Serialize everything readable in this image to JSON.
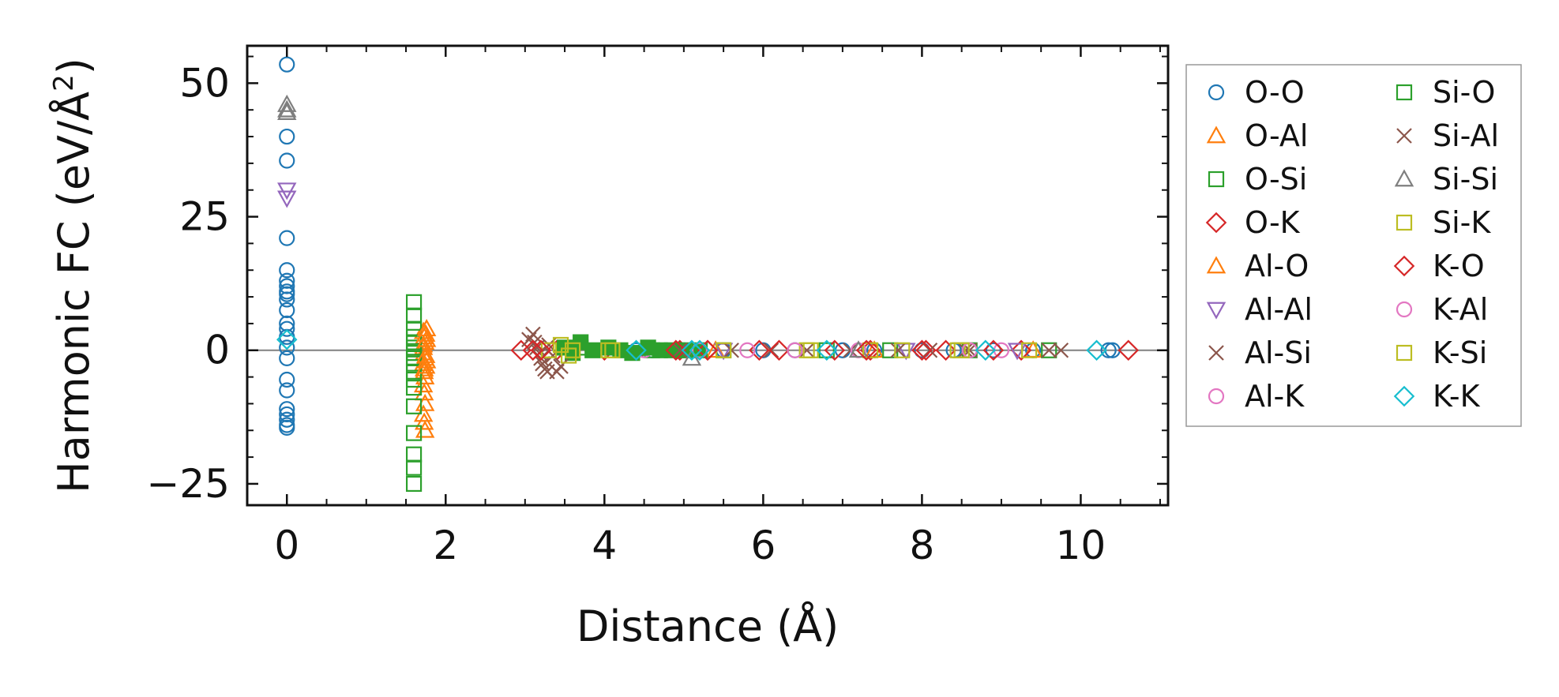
{
  "chart_data": {
    "type": "scatter",
    "title": "",
    "xlabel": "Distance (Å)",
    "ylabel_prefix": "Harmonic FC (eV/Å",
    "ylabel_sup": "2",
    "ylabel_suffix": ")",
    "xlim": [
      -0.5,
      11.1
    ],
    "ylim": [
      -29,
      57
    ],
    "xticks": [
      0,
      2,
      4,
      6,
      8,
      10
    ],
    "xtick_labels": [
      "0",
      "2",
      "4",
      "6",
      "8",
      "10"
    ],
    "yticks": [
      -25,
      0,
      25,
      50
    ],
    "ytick_labels": [
      "−25",
      "0",
      "25",
      "50"
    ],
    "zero_line": 0,
    "legend_position": "right",
    "series": [
      {
        "name": "O-O",
        "marker": "circle",
        "color": "#1f77b4",
        "filled": false,
        "x": [
          0,
          0,
          0,
          0,
          0,
          0,
          0,
          0,
          0,
          0,
          0,
          0,
          0,
          0,
          0,
          0,
          0,
          0,
          0,
          0,
          0,
          0,
          0,
          4.4,
          4.6,
          5.0,
          5.5,
          6.0,
          6.4,
          7.0,
          7.4,
          8.0,
          8.4,
          8.9,
          9.4,
          10.4,
          10.35
        ],
        "y": [
          53.5,
          40,
          35.5,
          21,
          15,
          13,
          12,
          11,
          10.5,
          9.5,
          7.5,
          5,
          4,
          2.5,
          -1.5,
          -5.5,
          -7.5,
          -11,
          -12,
          -13,
          -14,
          -14.5,
          0.5,
          0,
          0,
          0,
          0,
          0,
          0,
          0,
          0,
          0,
          0,
          0,
          0,
          0,
          0
        ]
      },
      {
        "name": "O-Al",
        "marker": "triangle-up",
        "color": "#ff7f0e",
        "filled": false,
        "x": [
          1.72,
          1.73,
          1.74,
          1.72,
          1.73,
          1.74,
          1.72,
          1.73,
          1.74,
          1.72,
          1.73,
          1.74,
          1.72,
          1.73,
          1.74,
          1.72,
          1.73,
          5.4,
          7.4,
          9.4
        ],
        "y": [
          3.5,
          2.5,
          1.5,
          0.5,
          -0.5,
          -1.5,
          -2.5,
          -3.5,
          -5,
          -6.5,
          -8,
          -10,
          -12,
          -13.5,
          -15,
          1,
          -4,
          0,
          0,
          0
        ]
      },
      {
        "name": "O-Si",
        "marker": "square",
        "color": "#2ca02c",
        "filled": false,
        "x": [
          1.6,
          1.6,
          1.6,
          1.6,
          1.6,
          1.6,
          1.6,
          1.6,
          1.6,
          1.6,
          1.6,
          1.6,
          1.6,
          1.6,
          1.6,
          1.6,
          1.6,
          3.7,
          4.6,
          5.5,
          6.8,
          7.6,
          8.6,
          9.6
        ],
        "y": [
          9,
          6.5,
          4,
          2.5,
          1.5,
          0.5,
          -0.5,
          -1.5,
          -2.5,
          -4,
          -5.5,
          -7,
          -10.5,
          -15.5,
          -19.5,
          -22,
          -25,
          0.5,
          0,
          0,
          0,
          0,
          0,
          0
        ]
      },
      {
        "name": "O-K",
        "marker": "diamond",
        "color": "#d62728",
        "filled": false,
        "x": [
          2.95,
          3.4,
          4.0,
          4.95,
          5.3,
          5.95,
          6.9,
          7.35,
          8.05,
          8.3,
          9.25,
          10.6
        ],
        "y": [
          0,
          0,
          0,
          0,
          0,
          0,
          0,
          0,
          0,
          0,
          0,
          0
        ]
      },
      {
        "name": "Al-O",
        "marker": "triangle-up",
        "color": "#ff7f0e",
        "filled": false,
        "x": [
          1.76,
          1.75,
          1.76,
          1.75,
          1.76,
          1.75
        ],
        "y": [
          4,
          3,
          2,
          -1,
          -2,
          -3
        ]
      },
      {
        "name": "Al-Al",
        "marker": "triangle-down",
        "color": "#9467bd",
        "filled": false,
        "x": [
          0,
          0,
          5.5,
          7.8,
          9.2
        ],
        "y": [
          30,
          28.5,
          0,
          0,
          0
        ]
      },
      {
        "name": "Al-Si",
        "marker": "x",
        "color": "#8c564b",
        "filled": false,
        "x": [
          3.1,
          3.12,
          3.15,
          3.18,
          3.2,
          3.22,
          3.25,
          3.28,
          3.3,
          3.35,
          3.4,
          4.55,
          5.6,
          6.1,
          7.1,
          7.7,
          8.1,
          8.6,
          9.6,
          9.75
        ],
        "y": [
          3,
          1.5,
          0.5,
          -0.5,
          -1.5,
          -2.5,
          -3.5,
          -4,
          1,
          -1,
          -4,
          0,
          0,
          0,
          0,
          0,
          0,
          0,
          0,
          0
        ]
      },
      {
        "name": "Al-K",
        "marker": "circle",
        "color": "#e377c2",
        "filled": false,
        "x": [
          4.5,
          5.8,
          7.2,
          9.0
        ],
        "y": [
          0,
          0,
          0,
          0
        ]
      },
      {
        "name": "Si-O",
        "marker": "square",
        "color": "#2ca02c",
        "filled": true,
        "x": [
          3.5,
          3.6,
          3.7,
          3.85,
          4.05,
          4.2,
          4.35,
          4.55,
          4.7,
          4.85,
          5.0,
          5.2
        ],
        "y": [
          0.5,
          -0.5,
          1.5,
          0,
          0.5,
          0,
          -0.5,
          0.5,
          0,
          0,
          0,
          0
        ]
      },
      {
        "name": "Si-Al",
        "marker": "x",
        "color": "#8c564b",
        "filled": false,
        "x": [
          3.05,
          3.45,
          4.95,
          6.55,
          8.55
        ],
        "y": [
          2,
          -3,
          0,
          0,
          0
        ]
      },
      {
        "name": "Si-Si",
        "marker": "triangle-up",
        "color": "#7f7f7f",
        "filled": false,
        "x": [
          0,
          0,
          0,
          5.1,
          7.2
        ],
        "y": [
          46,
          45,
          44.5,
          -1.5,
          0
        ]
      },
      {
        "name": "Si-K",
        "marker": "square",
        "color": "#bcbd22",
        "filled": false,
        "x": [
          3.3,
          3.45,
          3.55,
          4.05,
          5.5,
          6.55,
          7.35,
          7.75,
          8.45,
          9.35
        ],
        "y": [
          0,
          1,
          -1,
          0,
          0,
          0,
          0,
          0,
          0,
          0
        ]
      },
      {
        "name": "K-O",
        "marker": "diamond",
        "color": "#d62728",
        "filled": false,
        "x": [
          3.1,
          3.2,
          4.9,
          5.3,
          6.2,
          7.3,
          8.0,
          8.9
        ],
        "y": [
          0,
          0,
          0,
          0,
          0,
          0,
          0,
          0
        ]
      },
      {
        "name": "K-Al",
        "marker": "circle",
        "color": "#e377c2",
        "filled": false,
        "x": [
          5.2,
          6.4,
          8.6
        ],
        "y": [
          0,
          0,
          0
        ]
      },
      {
        "name": "K-Si",
        "marker": "square",
        "color": "#bcbd22",
        "filled": false,
        "x": [
          3.6,
          4.1,
          6.6,
          8.5
        ],
        "y": [
          0,
          0,
          0,
          0
        ]
      },
      {
        "name": "K-K",
        "marker": "diamond",
        "color": "#17becf",
        "filled": false,
        "x": [
          0,
          4.4,
          5.1,
          5.2,
          6.8,
          8.8,
          10.2
        ],
        "y": [
          2,
          0,
          0,
          0,
          0,
          0,
          0
        ]
      }
    ]
  }
}
